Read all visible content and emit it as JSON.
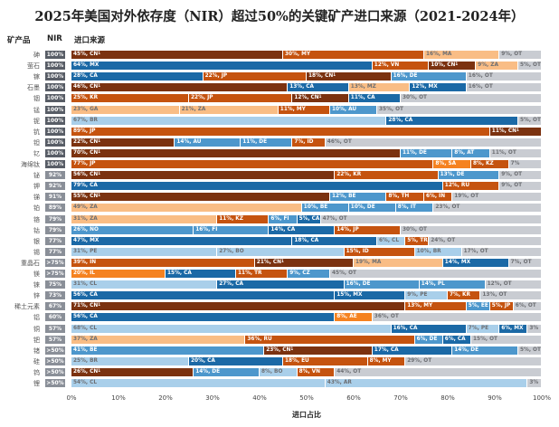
{
  "chart_data": {
    "type": "bar",
    "orientation": "horizontal-stacked",
    "title": "2025年美国对外依存度（NIR）超过50%的关键矿产进口来源（2021-2024年）",
    "column_headers": {
      "mineral": "矿产品",
      "nir": "NIR",
      "sources": "进口来源"
    },
    "xlabel": "进口占比",
    "xlim": [
      0,
      100
    ],
    "x_ticks": [
      "0%",
      "10%",
      "20%",
      "30%",
      "40%",
      "50%",
      "60%",
      "70%",
      "80%",
      "90%",
      "100%"
    ],
    "footnote_marker": "1",
    "colors": {
      "CN": "#7b3210",
      "JP": "#c5530f",
      "MY": "#c5530f",
      "KR": "#c5530f",
      "VN": "#c5530f",
      "KZ": "#c5530f",
      "RU": "#c5530f",
      "TR": "#c5530f",
      "ID": "#c5530f",
      "EU": "#c5530f",
      "IN": "#c5530f",
      "TH": "#c5530f",
      "SA": "#f58220",
      "IL": "#f58220",
      "AE": "#f58220",
      "MA": "#f9bd85",
      "ZA": "#f9bd85",
      "GA": "#f9bd85",
      "MZ": "#f9bd85",
      "MX": "#1b69a6",
      "CA": "#1b69a6",
      "DE": "#4d97cc",
      "AU": "#4d97cc",
      "BE": "#4d97cc",
      "NO": "#4d97cc",
      "FI": "#4d97cc",
      "IT": "#4d97cc",
      "AT": "#4d97cc",
      "EE": "#4d97cc",
      "PL": "#4d97cc",
      "CZ": "#4d97cc",
      "BR": "#a9cfea",
      "PE": "#a9cfea",
      "CL": "#a9cfea",
      "BO": "#a9cfea",
      "AR": "#a9cfea",
      "OT": "#c9ccd2",
      "": "#c9ccd2"
    },
    "rows": [
      {
        "mineral": "砷",
        "nir": "100%",
        "segments": [
          [
            45,
            "CN"
          ],
          [
            30,
            "MY"
          ],
          [
            16,
            "MA"
          ],
          [
            9,
            "OT"
          ]
        ]
      },
      {
        "mineral": "萤石",
        "nir": "100%",
        "segments": [
          [
            64,
            "MX"
          ],
          [
            12,
            "VN"
          ],
          [
            10,
            "CN"
          ],
          [
            9,
            "ZA"
          ],
          [
            5,
            "OT"
          ]
        ]
      },
      {
        "mineral": "镓",
        "nir": "100%",
        "segments": [
          [
            28,
            "CA"
          ],
          [
            22,
            "JP"
          ],
          [
            18,
            "CN"
          ],
          [
            16,
            "DE"
          ],
          [
            16,
            "OT"
          ]
        ]
      },
      {
        "mineral": "石墨",
        "nir": "100%",
        "segments": [
          [
            46,
            "CN"
          ],
          [
            13,
            "CA"
          ],
          [
            13,
            "MZ"
          ],
          [
            12,
            "MX"
          ],
          [
            16,
            "OT"
          ]
        ]
      },
      {
        "mineral": "铟",
        "nir": "100%",
        "segments": [
          [
            25,
            "KR"
          ],
          [
            22,
            "JP"
          ],
          [
            12,
            "CN"
          ],
          [
            11,
            "CA"
          ],
          [
            30,
            "OT"
          ]
        ]
      },
      {
        "mineral": "锰",
        "nir": "100%",
        "segments": [
          [
            23,
            "GA"
          ],
          [
            21,
            "ZA"
          ],
          [
            11,
            "MY"
          ],
          [
            10,
            "AU"
          ],
          [
            35,
            "OT"
          ]
        ]
      },
      {
        "mineral": "铌",
        "nir": "100%",
        "segments": [
          [
            67,
            "BR"
          ],
          [
            28,
            "CA"
          ],
          [
            5,
            "OT"
          ]
        ]
      },
      {
        "mineral": "钪",
        "nir": "100%",
        "segments": [
          [
            89,
            "JP"
          ],
          [
            11,
            "CN"
          ]
        ]
      },
      {
        "mineral": "钽",
        "nir": "100%",
        "segments": [
          [
            22,
            "CN"
          ],
          [
            14,
            "AU"
          ],
          [
            11,
            "DE"
          ],
          [
            7,
            "ID"
          ],
          [
            46,
            "OT"
          ]
        ]
      },
      {
        "mineral": "钇",
        "nir": "100%",
        "segments": [
          [
            70,
            "CN"
          ],
          [
            11,
            "DE"
          ],
          [
            8,
            "AT"
          ],
          [
            11,
            "OT"
          ]
        ]
      },
      {
        "mineral": "海绵钛",
        "nir": "100%",
        "segments": [
          [
            77,
            "JP"
          ],
          [
            8,
            "SA"
          ],
          [
            8,
            "KZ"
          ],
          [
            7,
            ""
          ]
        ]
      },
      {
        "mineral": "铋",
        "nir": "92%",
        "segments": [
          [
            56,
            "CN"
          ],
          [
            22,
            "KR"
          ],
          [
            13,
            "DE"
          ],
          [
            9,
            "OT"
          ]
        ]
      },
      {
        "mineral": "钾",
        "nir": "92%",
        "segments": [
          [
            79,
            "CA"
          ],
          [
            12,
            "RU"
          ],
          [
            9,
            "OT"
          ]
        ]
      },
      {
        "mineral": "锑",
        "nir": "91%",
        "segments": [
          [
            55,
            "CN"
          ],
          [
            12,
            "BE"
          ],
          [
            8,
            "TH"
          ],
          [
            6,
            "IN"
          ],
          [
            19,
            "OT"
          ]
        ]
      },
      {
        "mineral": "铂",
        "nir": "89%",
        "segments": [
          [
            49,
            "ZA"
          ],
          [
            10,
            "BE"
          ],
          [
            10,
            "DE"
          ],
          [
            8,
            "IT"
          ],
          [
            23,
            "OT"
          ]
        ]
      },
      {
        "mineral": "铬",
        "nir": "79%",
        "segments": [
          [
            31,
            "ZA"
          ],
          [
            11,
            "KZ"
          ],
          [
            6,
            "FI"
          ],
          [
            5,
            "CA"
          ],
          [
            47,
            "OT"
          ]
        ]
      },
      {
        "mineral": "钴",
        "nir": "79%",
        "segments": [
          [
            26,
            "NO"
          ],
          [
            16,
            "FI"
          ],
          [
            14,
            "CA"
          ],
          [
            14,
            "JP"
          ],
          [
            30,
            "OT"
          ]
        ]
      },
      {
        "mineral": "银",
        "nir": "77%",
        "segments": [
          [
            47,
            "MX"
          ],
          [
            18,
            "CA"
          ],
          [
            6,
            "CL"
          ],
          [
            5,
            "TR"
          ],
          [
            24,
            "OT"
          ]
        ]
      },
      {
        "mineral": "锡",
        "nir": "77%",
        "segments": [
          [
            31,
            "PE"
          ],
          [
            27,
            "BO"
          ],
          [
            15,
            "ID"
          ],
          [
            10,
            "BR"
          ],
          [
            17,
            "OT"
          ]
        ]
      },
      {
        "mineral": "重晶石",
        "nir": ">75%",
        "segments": [
          [
            39,
            "IN"
          ],
          [
            21,
            "CN"
          ],
          [
            19,
            "MA"
          ],
          [
            14,
            "MX"
          ],
          [
            7,
            "OT"
          ]
        ]
      },
      {
        "mineral": "镁",
        "nir": ">75%",
        "segments": [
          [
            20,
            "IL"
          ],
          [
            15,
            "CA"
          ],
          [
            11,
            "TR"
          ],
          [
            9,
            "CZ"
          ],
          [
            45,
            "OT"
          ]
        ]
      },
      {
        "mineral": "铼",
        "nir": "75%",
        "segments": [
          [
            31,
            "CL"
          ],
          [
            27,
            "CA"
          ],
          [
            16,
            "DE"
          ],
          [
            14,
            "PL"
          ],
          [
            12,
            "OT"
          ]
        ]
      },
      {
        "mineral": "锌",
        "nir": "73%",
        "segments": [
          [
            56,
            "CA"
          ],
          [
            15,
            "MX"
          ],
          [
            9,
            "PE"
          ],
          [
            7,
            "KR"
          ],
          [
            13,
            "OT"
          ]
        ]
      },
      {
        "mineral": "稀土元素",
        "nir": "67%",
        "segments": [
          [
            71,
            "CN"
          ],
          [
            13,
            "MY"
          ],
          [
            5,
            "EE"
          ],
          [
            5,
            "JP"
          ],
          [
            6,
            "OT"
          ]
        ]
      },
      {
        "mineral": "铝",
        "nir": "60%",
        "segments": [
          [
            56,
            "CA"
          ],
          [
            8,
            "AE"
          ],
          [
            36,
            "OT"
          ]
        ]
      },
      {
        "mineral": "铜",
        "nir": "57%",
        "segments": [
          [
            68,
            "CL"
          ],
          [
            16,
            "CA"
          ],
          [
            7,
            "PE"
          ],
          [
            6,
            "MX"
          ],
          [
            3,
            ""
          ]
        ]
      },
      {
        "mineral": "钯",
        "nir": "57%",
        "segments": [
          [
            37,
            "ZA"
          ],
          [
            36,
            "RU"
          ],
          [
            6,
            "DE"
          ],
          [
            6,
            "CA"
          ],
          [
            15,
            "OT"
          ]
        ]
      },
      {
        "mineral": "锗",
        "nir": ">50%",
        "segments": [
          [
            41,
            "BE"
          ],
          [
            23,
            "CN"
          ],
          [
            17,
            "CA"
          ],
          [
            14,
            "DE"
          ],
          [
            5,
            "OT"
          ]
        ]
      },
      {
        "mineral": "硅",
        "nir": ">50%",
        "segments": [
          [
            25,
            "BR"
          ],
          [
            20,
            "CA"
          ],
          [
            18,
            "EU"
          ],
          [
            8,
            "MY"
          ],
          [
            29,
            "OT"
          ]
        ]
      },
      {
        "mineral": "钨",
        "nir": ">50%",
        "segments": [
          [
            26,
            "CN"
          ],
          [
            14,
            "DE"
          ],
          [
            8,
            "BO"
          ],
          [
            8,
            "VN"
          ],
          [
            44,
            "OT"
          ]
        ]
      },
      {
        "mineral": "锂",
        "nir": ">50%",
        "segments": [
          [
            54,
            "CL"
          ],
          [
            43,
            "AR"
          ],
          [
            3,
            ""
          ]
        ]
      }
    ]
  }
}
